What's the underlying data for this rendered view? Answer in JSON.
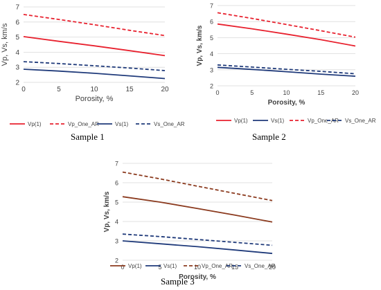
{
  "chart_data": [
    {
      "type": "line",
      "caption": "Sample 1",
      "xlabel": "Porosity, %",
      "ylabel": "Vp, Vs, km/s",
      "xlim": [
        0,
        20
      ],
      "ylim": [
        2,
        7
      ],
      "xticks": [
        "0",
        "5",
        "10",
        "15",
        "20"
      ],
      "yticks": [
        "2",
        "3",
        "4",
        "5",
        "6",
        "7"
      ],
      "grid": "horizontal",
      "legend": "bottom",
      "series": [
        {
          "name": "Vp(1)",
          "color": "#e8212e",
          "dash": "solid",
          "x": [
            0,
            5,
            10,
            15,
            20
          ],
          "y": [
            5.03,
            4.72,
            4.42,
            4.1,
            3.77
          ]
        },
        {
          "name": "Vp_One_AR",
          "color": "#e8212e",
          "dash": "dashed",
          "x": [
            0,
            5,
            10,
            15,
            20
          ],
          "y": [
            6.5,
            6.17,
            5.82,
            5.45,
            5.1
          ]
        },
        {
          "name": "Vs(1)",
          "color": "#1f3a7a",
          "dash": "solid",
          "x": [
            0,
            5,
            10,
            15,
            20
          ],
          "y": [
            2.87,
            2.75,
            2.6,
            2.43,
            2.25
          ]
        },
        {
          "name": "Vs_One_AR",
          "color": "#1f3a7a",
          "dash": "dashed",
          "x": [
            0,
            5,
            10,
            15,
            20
          ],
          "y": [
            3.37,
            3.25,
            3.1,
            2.95,
            2.78
          ]
        }
      ]
    },
    {
      "type": "line",
      "caption": "Sample 2",
      "xlabel": "Porosity, %",
      "ylabel": "Vp, Vs, km/s",
      "xlim": [
        0,
        20
      ],
      "ylim": [
        2,
        7
      ],
      "xticks": [
        "0",
        "5",
        "10",
        "15",
        "20"
      ],
      "yticks": [
        "2",
        "3",
        "4",
        "5",
        "6",
        "7"
      ],
      "grid": "horizontal",
      "legend": "bottom",
      "series": [
        {
          "name": "Vp(1)",
          "color": "#e8212e",
          "dash": "solid",
          "x": [
            0,
            5,
            10,
            15,
            20
          ],
          "y": [
            5.85,
            5.55,
            5.22,
            4.87,
            4.48
          ]
        },
        {
          "name": "Vs(1)",
          "color": "#1f3a7a",
          "dash": "solid",
          "x": [
            0,
            5,
            10,
            15,
            20
          ],
          "y": [
            3.15,
            3.02,
            2.88,
            2.73,
            2.6
          ]
        },
        {
          "name": "Vp_One_AR",
          "color": "#e8212e",
          "dash": "dashed",
          "x": [
            0,
            5,
            10,
            15,
            20
          ],
          "y": [
            6.55,
            6.2,
            5.82,
            5.43,
            5.03
          ]
        },
        {
          "name": "Vs_One_AR",
          "color": "#1f3a7a",
          "dash": "dashed",
          "x": [
            0,
            5,
            10,
            15,
            20
          ],
          "y": [
            3.3,
            3.17,
            3.03,
            2.9,
            2.75
          ]
        }
      ]
    },
    {
      "type": "line",
      "caption": "Sample 3",
      "xlabel": "Porosity, %",
      "ylabel": "Vp, Vs, km/s",
      "xlim": [
        0,
        20
      ],
      "ylim": [
        2,
        7
      ],
      "xticks": [
        "0",
        "5",
        "10",
        "15",
        "20"
      ],
      "yticks": [
        "2",
        "3",
        "4",
        "5",
        "6",
        "7"
      ],
      "grid": "horizontal",
      "legend": "bottom",
      "series": [
        {
          "name": "Vp(1)",
          "color": "#8b3a1e",
          "dash": "solid",
          "x": [
            0,
            5,
            10,
            15,
            20
          ],
          "y": [
            5.28,
            5.0,
            4.67,
            4.33,
            3.97
          ]
        },
        {
          "name": "Vs(1)",
          "color": "#1f3a7a",
          "dash": "solid",
          "x": [
            0,
            5,
            10,
            15,
            20
          ],
          "y": [
            3.0,
            2.85,
            2.7,
            2.53,
            2.35
          ]
        },
        {
          "name": "Vp_One_AR",
          "color": "#8b3a1e",
          "dash": "dashed",
          "x": [
            0,
            5,
            10,
            15,
            20
          ],
          "y": [
            6.55,
            6.2,
            5.82,
            5.45,
            5.08
          ]
        },
        {
          "name": "Vs_One_AR",
          "color": "#1f3a7a",
          "dash": "dashed",
          "x": [
            0,
            5,
            10,
            15,
            20
          ],
          "y": [
            3.35,
            3.22,
            3.07,
            2.92,
            2.77
          ]
        }
      ]
    }
  ]
}
